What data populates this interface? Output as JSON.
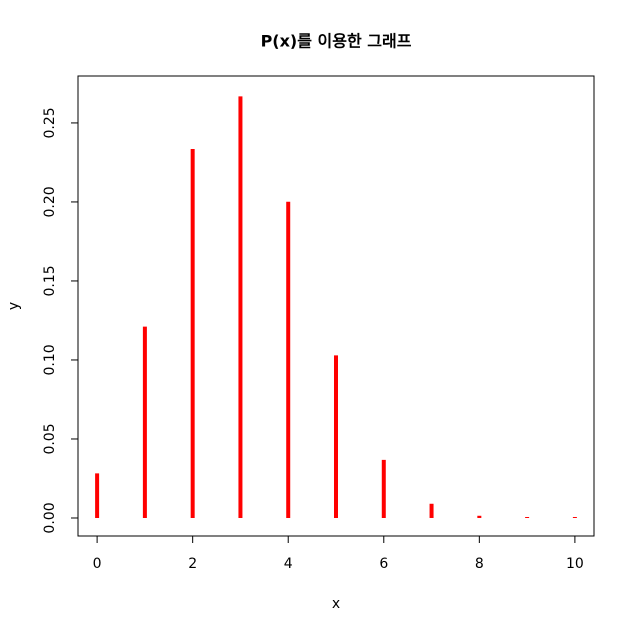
{
  "chart_data": {
    "type": "bar",
    "title": "P(x)를 이용한 그래프",
    "x_label": "x",
    "y_label": "y",
    "x": [
      0,
      1,
      2,
      3,
      4,
      5,
      6,
      7,
      8,
      9,
      10
    ],
    "values": [
      0.0282,
      0.1211,
      0.2335,
      0.2668,
      0.2001,
      0.1029,
      0.0368,
      0.009,
      0.0014,
      0.0001,
      0.0
    ],
    "color": "#ff0000",
    "xlim": [
      -0.4,
      10.4
    ],
    "xticks": [
      0,
      2,
      4,
      6,
      8,
      10
    ],
    "ylim": [
      -0.0114,
      0.2797
    ],
    "yticks": [
      {
        "value": 0,
        "label": "0.00"
      },
      {
        "value": 0.05,
        "label": "0.05"
      },
      {
        "value": 0.1,
        "label": "0.10"
      },
      {
        "value": 0.15,
        "label": "0.15"
      },
      {
        "value": 0.2,
        "label": "0.20"
      },
      {
        "value": 0.25,
        "label": "0.25"
      }
    ]
  }
}
